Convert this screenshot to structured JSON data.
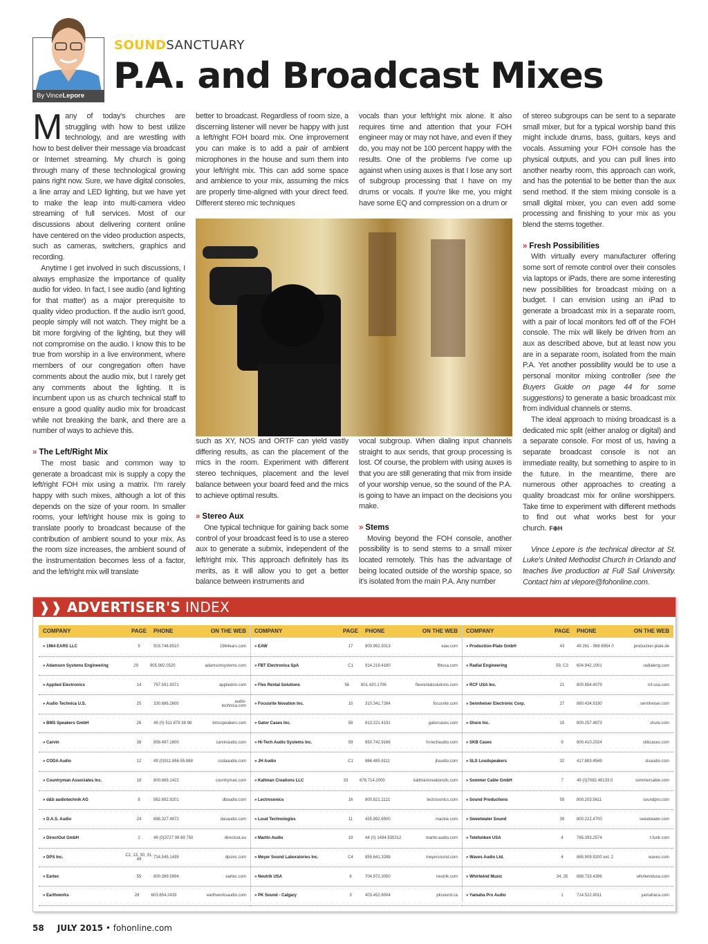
{
  "header": {
    "byline_prefix": "By ",
    "byline_first": "Vince",
    "byline_last": "Lepore",
    "kicker_bold": "SOUND",
    "kicker_light": "SANCTUARY",
    "title": "P.A. and Broadcast Mixes"
  },
  "colors": {
    "accent_red": "#c8392b",
    "accent_yellow": "#f3c84b",
    "kicker_yellow": "#f0c419"
  },
  "article": {
    "col1": {
      "dropcap": "M",
      "p1": "any of today's churches are struggling with how to best utilize technology, and are wrestling with how to best deliver their message via broadcast or Internet streaming. My church is going through many of these technological growing pains right now. Sure, we have digital consoles, a line array and LED lighting, but we have yet to make the leap into multi-camera video streaming of full services. Most of our discussions about delivering content online have centered on the video production aspects, such as cameras, switchers, graphics and recording.",
      "p2": "Anytime I get involved in such discussions, I always emphasize the importance of quality audio for video. In fact, I see audio (and lighting for that matter) as a major prerequisite to quality video production. If the audio isn't good, people simply will not watch. They might be a bit more forgiving of the lighting, but they will not compromise on the audio. I know this to be true from worship in a live environment, where members of our congregation often have comments about the audio mix, but I rarely get any comments about the lighting. It is incumbent upon us as church technical staff to ensure a good quality audio mix for broadcast while not breaking the bank, and there are a number of ways to achieve this.",
      "h1": "The Left/Right Mix",
      "p3": "The most basic and common way to generate a broadcast mix is supply a copy the left/right FOH mix using a matrix. I'm rarely happy with such mixes, although a lot of this depends on the size of your room. In smaller rooms, your left/right house mix is going to translate poorly to broadcast because of the contribution of ambient sound to your mix. As the room size increases, the ambient sound of the instrumentation becomes less of a factor, and the left/right mix will translate"
    },
    "col2": {
      "p1": "better to broadcast. Regardless of room size, a discerning listener will never be happy with just a left/right FOH board mix. One improvement you can make is to add a pair of ambient microphones in the house and sum them into your left/right mix. This can add some space and ambience to your mix, assuming the mics are properly time-aligned with your direct feed. Different stereo mic techniques",
      "p2": "such as XY, NOS and ORTF can yield vastly differing results, as can the placement of the mics in the room. Experiment with different stereo techniques, placement and the level balance between your board feed and the mics to achieve optimal results.",
      "h1": "Stereo Aux",
      "p3": "One typical technique for gaining back some control of your broadcast feed is to use a stereo aux to generate a submix, independent of the left/right mix. This approach definitely has its merits, as it will allow you to get a better balance between instruments and"
    },
    "col3": {
      "p1": "vocals than your left/right mix alone. It also requires time and attention that your FOH engineer may or may not have, and even if they do, you may not be 100 percent happy with the results. One of the problems I've come up against when using auxes is that I lose any sort of subgroup processing that I have on my drums or vocals. If you're like me, you might have some EQ and compression on a drum or",
      "p2": "vocal subgroup. When dialing input channels straight to aux sends, that group processing is lost. Of course, the problem with using auxes is that you are still generating that mix from inside of your worship venue, so the sound of the P.A. is going to have an impact on the decisions you make.",
      "h1": "Stems",
      "p3": "Moving beyond the FOH console, another possibility is to send stems to a small mixer located remotely. This has the advantage of being located outside of the worship space, so it's isolated from the main P.A. Any number"
    },
    "col4": {
      "p1": "of stereo subgroups can be sent to a separate small mixer, but for a typical worship band this might include drums, bass, guitars, keys and vocals. Assuming your FOH console has the physical outputs, and you can pull lines into another nearby room, this approach can work, and has the potential to be better than the aux send method. If the stem mixing console is a small digital mixer, you can even add some processing and finishing to your mix as you blend the stems together.",
      "h1": "Fresh Possibilities",
      "p2a": "With virtually every manufacturer offering some sort of remote control over their consoles via laptops or iPads, there are some interesting new possibilities for broadcast mixing on a budget. I can envision using an iPad to generate a broadcast mix in a separate room, with a pair of local monitors fed off of the FOH console. The mix will likely be driven from an aux as described above, but at least now you are in a separate room, isolated from the main P.A. Yet another possibility would be to use a personal monitor mixing controller ",
      "p2_italic": "(see the Buyers Guide on page 44 for some suggestions)",
      "p2b": " to generate a basic broadcast mix from individual channels or stems.",
      "p3": "The ideal approach to mixing broadcast is a dedicated mic split (either analog or digital) and a separate console. For most of us, having a separate broadcast console is not an immediate reality, but something to aspire to in the future. In the meantime, there are numerous other approaches to creating a quality broadcast mix for online worshippers. Take time to experiment with different methods to find out what works best for your church.",
      "endmark": "F⊕H",
      "bio": "Vince Lepore is the technical director at St. Luke's United Methodist Church in Orlando and teaches live production at Full Sail University. Contact him at vlepore@fohonline.com."
    }
  },
  "advertisers": {
    "title_bold": "ADVERTISER'S",
    "title_light": "INDEX",
    "headers": [
      "COMPANY",
      "PAGE",
      "PHONE",
      "ON THE WEB"
    ],
    "columns": [
      [
        [
          "1964 EARS LLC",
          "5",
          "503.746.8510",
          "1964ears.com"
        ],
        [
          "Adamson Systems Engineering",
          "29",
          "905.982.0520",
          "adamsonsystems.com"
        ],
        [
          "Applied Electronics",
          "14",
          "757.591.9371",
          "appliednn.com"
        ],
        [
          "Audio Technica U.S.",
          "25",
          "330.686.2600",
          "audio-technica.com"
        ],
        [
          "BMS Speakers GmbH",
          "26",
          "49 (0) 511 879 38 98",
          "bmsspeakers.com"
        ],
        [
          "Carvin",
          "38",
          "858.487.1600",
          "carvinaudio.com"
        ],
        [
          "CODA Audio",
          "12",
          "49 (0)511.866.55.888",
          "codaaudio.com"
        ],
        [
          "Countryman Associates Inc.",
          "18",
          "800.669.1422",
          "countryman.com"
        ],
        [
          "d&b audiotechnik AG",
          "8",
          "562.692.9201",
          "dbaudio.com"
        ],
        [
          "D.A.S. Audio",
          "24",
          "888.327.4872",
          "dasaudio.com"
        ],
        [
          "DirectOut GmbH",
          "2",
          "49 (0)3727 99 69 750",
          "directout.eu"
        ],
        [
          "DPS Inc.",
          "C2, 13, 30, 31, 49",
          "714.545.1439",
          "dpsinc.com"
        ],
        [
          "Eartec",
          "55",
          "800.399.5994",
          "eartec.com"
        ],
        [
          "Earthworks",
          "28",
          "603.654.2433",
          "earthworksaudio.com"
        ]
      ],
      [
        [
          "EAW",
          "17",
          "800.992.5013",
          "eaw.com"
        ],
        [
          "FBT Electronica SpA",
          "C1",
          "914.219.4180",
          "fbtusa.com"
        ],
        [
          "Flex Rental Solutions",
          "56",
          "801.420.1706",
          "flexrentalsolutions.com"
        ],
        [
          "Focusrite Novation Inc.",
          "10",
          "310.341.7264",
          "focusrite.com"
        ],
        [
          "Gator Cases Inc.",
          "59",
          "813.221.4191",
          "gatorcases.com"
        ],
        [
          "Hi-Tech Audio Systems Inc.",
          "59",
          "650.742.9166",
          "hi-techaudio.com"
        ],
        [
          "JH Audio",
          "C1",
          "866.485.9111",
          "jhaudio.com"
        ],
        [
          "Kaltman Creations LLC",
          "33",
          "678.714.2000",
          "kaltmancreationsllc.com"
        ],
        [
          "Lectrosonics",
          "16",
          "800.821.1121",
          "lectrosonics.com"
        ],
        [
          "Loud Technologies",
          "11",
          "425.892.6500",
          "mackie.com"
        ],
        [
          "Martin Audio",
          "19",
          "44 (0) 1494.535312",
          "martin-audio.com"
        ],
        [
          "Meyer Sound Laboratories Inc.",
          "C4",
          "855.641.3288",
          "meyersound.com"
        ],
        [
          "Neutrik USA",
          "6",
          "704.972.3050",
          "neutrik.com"
        ],
        [
          "PK Sound - Calgary",
          "3",
          "403.452.6004",
          "pksound.ca"
        ]
      ],
      [
        [
          "Production-Plate GmbH",
          "43",
          "49 261 - 988 8954 0",
          "production-plate.de"
        ],
        [
          "Radial Engineering",
          "59, C3",
          "604.942.1001",
          "radialeng.com"
        ],
        [
          "RCF USA Inc.",
          "21",
          "800.854.4079",
          "rcf-usa.com"
        ],
        [
          "Sennheiser Electronic Corp.",
          "27",
          "860.434.9190",
          "sennheiser.com"
        ],
        [
          "Shure Inc.",
          "15",
          "800.257.4873",
          "shure.com"
        ],
        [
          "SKB Cases",
          "9",
          "800.410.2024",
          "skbcases.com"
        ],
        [
          "SLS Loudspeakers",
          "32",
          "417.883.4549",
          "slsaudio.com"
        ],
        [
          "Sommer Cable GmbH",
          "7",
          "49 (0)7082.49133.0",
          "sommercable.com"
        ],
        [
          "Sound Productions",
          "59",
          "800.203.5611",
          "soundpro.com"
        ],
        [
          "Sweetwater Sound",
          "39",
          "800.222.4700",
          "sweetwater.com"
        ],
        [
          "Telefunken USA",
          "4",
          "765.393.2574",
          "t-funk.com"
        ],
        [
          "Waves Audio Ltd.",
          "4",
          "865.909.9200 ext. 2",
          "waves.com"
        ],
        [
          "Whirlwind Music",
          "34, 35",
          "888.733.4396",
          "whirlwindusa.com"
        ],
        [
          "Yamaha Pro Audio",
          "1",
          "714.522.9011",
          "yamahaca.com"
        ]
      ]
    ]
  },
  "footer": {
    "page": "58",
    "issue": "JULY 2015",
    "bullet": "•",
    "site": "fohonline.com"
  }
}
